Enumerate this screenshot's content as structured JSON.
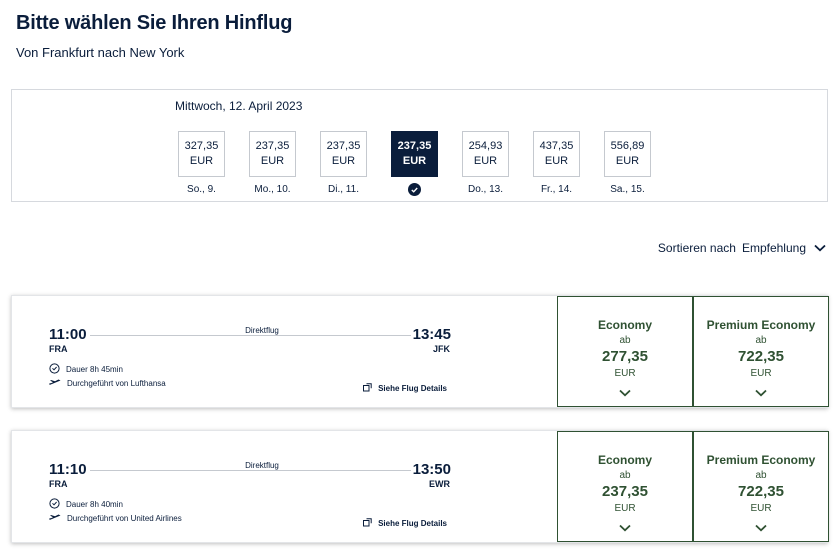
{
  "header": {
    "title": "Bitte wählen Sie Ihren Hinflug",
    "subtitle": "Von Frankfurt nach New York"
  },
  "date_selector": {
    "heading": "Mittwoch, 12. April 2023",
    "selected_index": 3,
    "days": [
      {
        "price": "327,35",
        "currency": "EUR",
        "label": "So., 9."
      },
      {
        "price": "237,35",
        "currency": "EUR",
        "label": "Mo., 10."
      },
      {
        "price": "237,35",
        "currency": "EUR",
        "label": "Di., 11."
      },
      {
        "price": "237,35",
        "currency": "EUR",
        "label": ""
      },
      {
        "price": "254,93",
        "currency": "EUR",
        "label": "Do., 13."
      },
      {
        "price": "437,35",
        "currency": "EUR",
        "label": "Fr., 14."
      },
      {
        "price": "556,89",
        "currency": "EUR",
        "label": "Sa., 15."
      }
    ]
  },
  "sort": {
    "label": "Sortieren nach",
    "value": "Empfehlung"
  },
  "flights": [
    {
      "dep_time": "11:00",
      "dep_code": "FRA",
      "arr_time": "13:45",
      "arr_code": "JFK",
      "stops": "Direktflug",
      "duration": "Dauer 8h 45min",
      "operator": "Durchgeführt von Lufthansa",
      "details": "Siehe Flug Details",
      "fares": [
        {
          "class": "Economy",
          "from": "ab",
          "price": "277,35",
          "currency": "EUR"
        },
        {
          "class": "Premium Economy",
          "from": "ab",
          "price": "722,35",
          "currency": "EUR"
        }
      ]
    },
    {
      "dep_time": "11:10",
      "dep_code": "FRA",
      "arr_time": "13:50",
      "arr_code": "EWR",
      "stops": "Direktflug",
      "duration": "Dauer 8h 40min",
      "operator": "Durchgeführt von United Airlines",
      "details": "Siehe Flug Details",
      "fares": [
        {
          "class": "Economy",
          "from": "ab",
          "price": "237,35",
          "currency": "EUR"
        },
        {
          "class": "Premium Economy",
          "from": "ab",
          "price": "722,35",
          "currency": "EUR"
        }
      ]
    }
  ],
  "icons": {
    "check": "check-circle-icon",
    "clock": "clock-icon",
    "plane": "plane-icon",
    "external": "external-link-icon",
    "chevron": "chevron-down-icon"
  },
  "colors": {
    "navy": "#0a1d3b",
    "fare_green": "#2f5132",
    "border": "#d6d9de"
  }
}
